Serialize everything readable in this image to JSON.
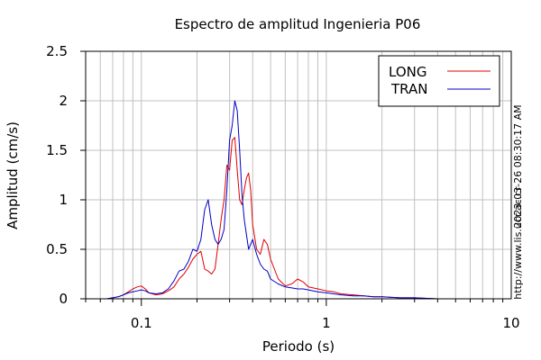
{
  "chart_data": {
    "type": "line",
    "title": "Espectro de amplitud Ingenieria P06",
    "xlabel": "Periodo (s)",
    "ylabel": "Amplitud (cm/s)",
    "x_scale": "log",
    "xlim": [
      0.05,
      10
    ],
    "ylim": [
      0,
      2.5
    ],
    "x_ticks": [
      {
        "value": 0.1,
        "label": "0.1"
      },
      {
        "value": 1,
        "label": "1"
      },
      {
        "value": 10,
        "label": "10"
      }
    ],
    "y_ticks": [
      {
        "value": 0,
        "label": "0"
      },
      {
        "value": 0.5,
        "label": "0.5"
      },
      {
        "value": 1,
        "label": "1"
      },
      {
        "value": 1.5,
        "label": "1.5"
      },
      {
        "value": 2,
        "label": "2"
      },
      {
        "value": 2.5,
        "label": "2.5"
      }
    ],
    "grid": true,
    "legend_position": "top-right",
    "series": [
      {
        "name": "LONG",
        "color": "#e00000",
        "x": [
          0.065,
          0.07,
          0.075,
          0.08,
          0.085,
          0.09,
          0.095,
          0.1,
          0.105,
          0.11,
          0.12,
          0.13,
          0.14,
          0.15,
          0.16,
          0.17,
          0.18,
          0.19,
          0.2,
          0.21,
          0.22,
          0.23,
          0.24,
          0.25,
          0.26,
          0.27,
          0.28,
          0.29,
          0.3,
          0.31,
          0.32,
          0.33,
          0.34,
          0.35,
          0.36,
          0.37,
          0.38,
          0.39,
          0.4,
          0.42,
          0.44,
          0.46,
          0.48,
          0.5,
          0.55,
          0.6,
          0.65,
          0.7,
          0.75,
          0.8,
          0.9,
          1.0,
          1.1,
          1.2,
          1.4,
          1.6,
          1.8,
          2.0,
          2.5,
          3.0,
          4.0,
          5.0,
          6.0,
          8.0,
          10.0
        ],
        "y": [
          0.0,
          0.01,
          0.02,
          0.04,
          0.07,
          0.1,
          0.12,
          0.13,
          0.1,
          0.06,
          0.04,
          0.05,
          0.08,
          0.12,
          0.2,
          0.25,
          0.32,
          0.4,
          0.45,
          0.48,
          0.3,
          0.28,
          0.25,
          0.3,
          0.55,
          0.8,
          1.0,
          1.35,
          1.3,
          1.6,
          1.63,
          1.3,
          1.0,
          0.95,
          1.1,
          1.22,
          1.27,
          1.1,
          0.75,
          0.5,
          0.45,
          0.6,
          0.55,
          0.4,
          0.2,
          0.13,
          0.15,
          0.2,
          0.17,
          0.12,
          0.1,
          0.08,
          0.07,
          0.05,
          0.04,
          0.03,
          0.02,
          0.02,
          0.01,
          0.01,
          0.0,
          0.0,
          0.0,
          0.0,
          0.0
        ]
      },
      {
        "name": "TRAN",
        "color": "#0000c8",
        "x": [
          0.065,
          0.07,
          0.075,
          0.08,
          0.085,
          0.09,
          0.095,
          0.1,
          0.105,
          0.11,
          0.12,
          0.13,
          0.14,
          0.15,
          0.16,
          0.17,
          0.18,
          0.19,
          0.2,
          0.21,
          0.22,
          0.23,
          0.24,
          0.25,
          0.26,
          0.27,
          0.28,
          0.29,
          0.3,
          0.31,
          0.32,
          0.33,
          0.34,
          0.35,
          0.36,
          0.37,
          0.38,
          0.39,
          0.4,
          0.42,
          0.44,
          0.46,
          0.48,
          0.5,
          0.55,
          0.6,
          0.65,
          0.7,
          0.75,
          0.8,
          0.9,
          1.0,
          1.1,
          1.2,
          1.4,
          1.6,
          1.8,
          2.0,
          2.5,
          3.0,
          4.0,
          5.0,
          6.0,
          8.0,
          10.0
        ],
        "y": [
          0.0,
          0.01,
          0.02,
          0.04,
          0.06,
          0.07,
          0.08,
          0.09,
          0.08,
          0.06,
          0.05,
          0.06,
          0.1,
          0.18,
          0.28,
          0.3,
          0.38,
          0.5,
          0.48,
          0.6,
          0.9,
          1.0,
          0.75,
          0.6,
          0.55,
          0.6,
          0.7,
          1.1,
          1.6,
          1.75,
          2.0,
          1.9,
          1.5,
          1.05,
          0.8,
          0.65,
          0.5,
          0.55,
          0.6,
          0.45,
          0.35,
          0.3,
          0.28,
          0.2,
          0.15,
          0.12,
          0.11,
          0.1,
          0.1,
          0.09,
          0.07,
          0.06,
          0.05,
          0.04,
          0.03,
          0.03,
          0.02,
          0.02,
          0.01,
          0.01,
          0.0,
          0.0,
          0.0,
          0.0,
          0.0
        ]
      }
    ],
    "side_annotations": {
      "timestamp": "2023-03-26 08:30:17 AM",
      "url": "http://www.lis.ucr.ac.cr"
    }
  }
}
